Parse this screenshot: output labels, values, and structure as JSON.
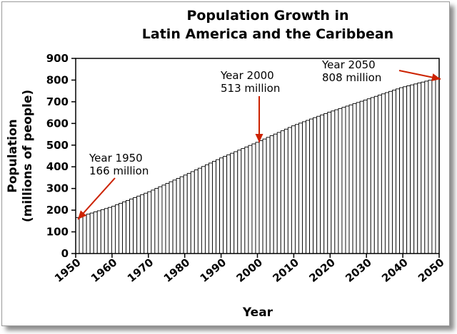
{
  "chart_data": {
    "type": "bar",
    "title_line1": "Population Growth in",
    "title_line2": "Latin America and the Caribbean",
    "ylabel_line1": "Population",
    "ylabel_line2": "(millions of people)",
    "xlabel": "Year",
    "xlim": [
      1950,
      2050
    ],
    "ylim": [
      0,
      900
    ],
    "grid": false,
    "legend": "none",
    "yticks": [
      "0",
      "100",
      "200",
      "300",
      "400",
      "500",
      "600",
      "700",
      "800",
      "900"
    ],
    "xticks": [
      "1950",
      "1960",
      "1970",
      "1980",
      "1990",
      "2000",
      "2010",
      "2020",
      "2030",
      "2040",
      "2050"
    ],
    "anchors": [
      {
        "year": 1950,
        "value": 166
      },
      {
        "year": 1960,
        "value": 218
      },
      {
        "year": 1970,
        "value": 285
      },
      {
        "year": 1980,
        "value": 362
      },
      {
        "year": 1990,
        "value": 441
      },
      {
        "year": 2000,
        "value": 513
      },
      {
        "year": 2010,
        "value": 589
      },
      {
        "year": 2020,
        "value": 652
      },
      {
        "year": 2030,
        "value": 708
      },
      {
        "year": 2040,
        "value": 765
      },
      {
        "year": 2050,
        "value": 808
      }
    ],
    "annotations": [
      {
        "line1": "Year 1950",
        "line2": "166 million",
        "year": 1950,
        "value": 166
      },
      {
        "line1": "Year 2000",
        "line2": "513 million",
        "year": 2000,
        "value": 513
      },
      {
        "line1": "Year 2050",
        "line2": "808 million",
        "year": 2050,
        "value": 808
      }
    ],
    "colors": {
      "bar_fill": "#ffffff",
      "bar_stroke": "#000000",
      "arrow": "#cc2200"
    }
  }
}
